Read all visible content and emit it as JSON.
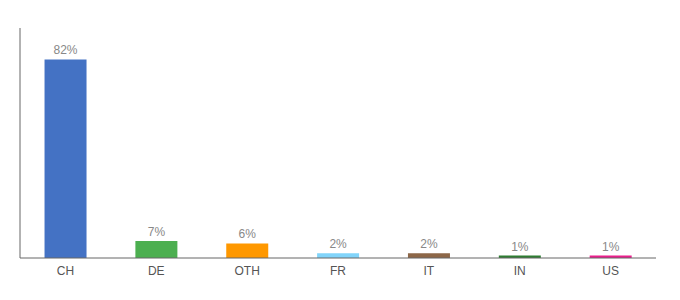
{
  "chart_data": {
    "type": "bar",
    "categories": [
      "CH",
      "DE",
      "OTH",
      "FR",
      "IT",
      "IN",
      "US"
    ],
    "values": [
      82,
      7,
      6,
      2,
      2,
      1,
      1
    ],
    "value_labels": [
      "82%",
      "7%",
      "6%",
      "2%",
      "2%",
      "1%",
      "1%"
    ],
    "colors": [
      "#4472c4",
      "#4caf50",
      "#ff9800",
      "#81d4fa",
      "#8d6748",
      "#2e7d32",
      "#e91e8c"
    ],
    "ylim": [
      0,
      95
    ],
    "data_labels": true,
    "tick_labels": "x",
    "grid": false
  }
}
